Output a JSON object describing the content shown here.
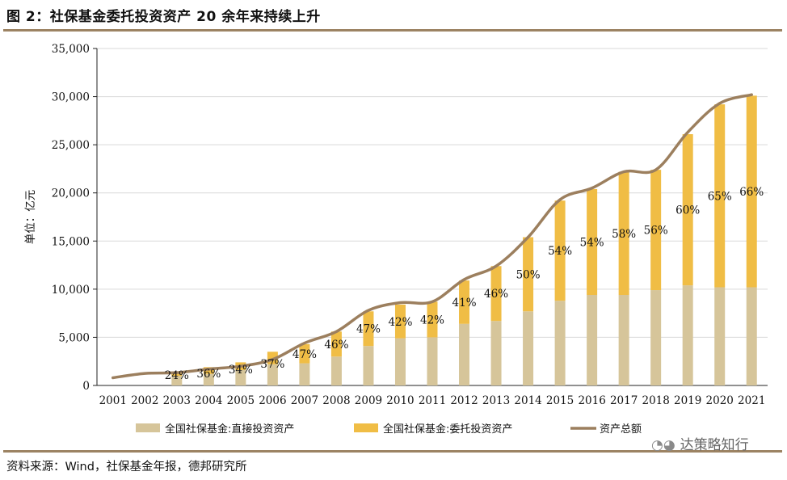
{
  "figure": {
    "title": "图 2：社保基金委托投资资产 20 余年来持续上升",
    "source": "资料来源：Wind，社保基金年报，德邦研究所",
    "watermark": "达策略知行"
  },
  "colors": {
    "direct": "#d6c59a",
    "entrusted": "#f0bd45",
    "total": "#9c7f5e",
    "rule": "#9c8363",
    "gridline": "#d9d9d9"
  },
  "chart_data": {
    "type": "bar",
    "stacked": true,
    "title": "",
    "xlabel": "",
    "ylabel": "单位：亿元",
    "ylim": [
      0,
      35000
    ],
    "yticks": [
      0,
      5000,
      10000,
      15000,
      20000,
      25000,
      30000,
      35000
    ],
    "ytick_labels": [
      "0",
      "5,000",
      "10,000",
      "15,000",
      "20,000",
      "25,000",
      "30,000",
      "35,000"
    ],
    "gridlines": true,
    "legend_position": "bottom",
    "categories": [
      "2001",
      "2002",
      "2003",
      "2004",
      "2005",
      "2006",
      "2007",
      "2008",
      "2009",
      "2010",
      "2011",
      "2012",
      "2013",
      "2014",
      "2015",
      "2016",
      "2017",
      "2018",
      "2019",
      "2020",
      "2021"
    ],
    "series": [
      {
        "name": "全国社保基金:直接投资资产",
        "kind": "bar",
        "values": [
          0,
          0,
          1000,
          1200,
          1600,
          2200,
          2300,
          3000,
          4100,
          4900,
          5000,
          6400,
          6700,
          7700,
          8800,
          9400,
          9400,
          9900,
          10400,
          10200,
          10200
        ]
      },
      {
        "name": "全国社保基金:委托投资资产",
        "kind": "bar",
        "values": [
          0,
          0,
          300,
          700,
          800,
          1300,
          2000,
          2600,
          3600,
          3500,
          3700,
          4500,
          5700,
          7700,
          10400,
          11000,
          12800,
          12500,
          15700,
          19000,
          19900
        ]
      },
      {
        "name": "资产总额",
        "kind": "line",
        "values": [
          800,
          1250,
          1330,
          1700,
          2000,
          2700,
          4400,
          5600,
          7800,
          8600,
          8700,
          11000,
          12400,
          15400,
          19300,
          20500,
          22200,
          22400,
          26300,
          29300,
          30200
        ]
      }
    ],
    "data_labels": [
      "",
      "",
      "24%",
      "36%",
      "34%",
      "37%",
      "47%",
      "46%",
      "47%",
      "42%",
      "42%",
      "41%",
      "46%",
      "50%",
      "54%",
      "54%",
      "58%",
      "56%",
      "60%",
      "65%",
      "66%"
    ]
  }
}
